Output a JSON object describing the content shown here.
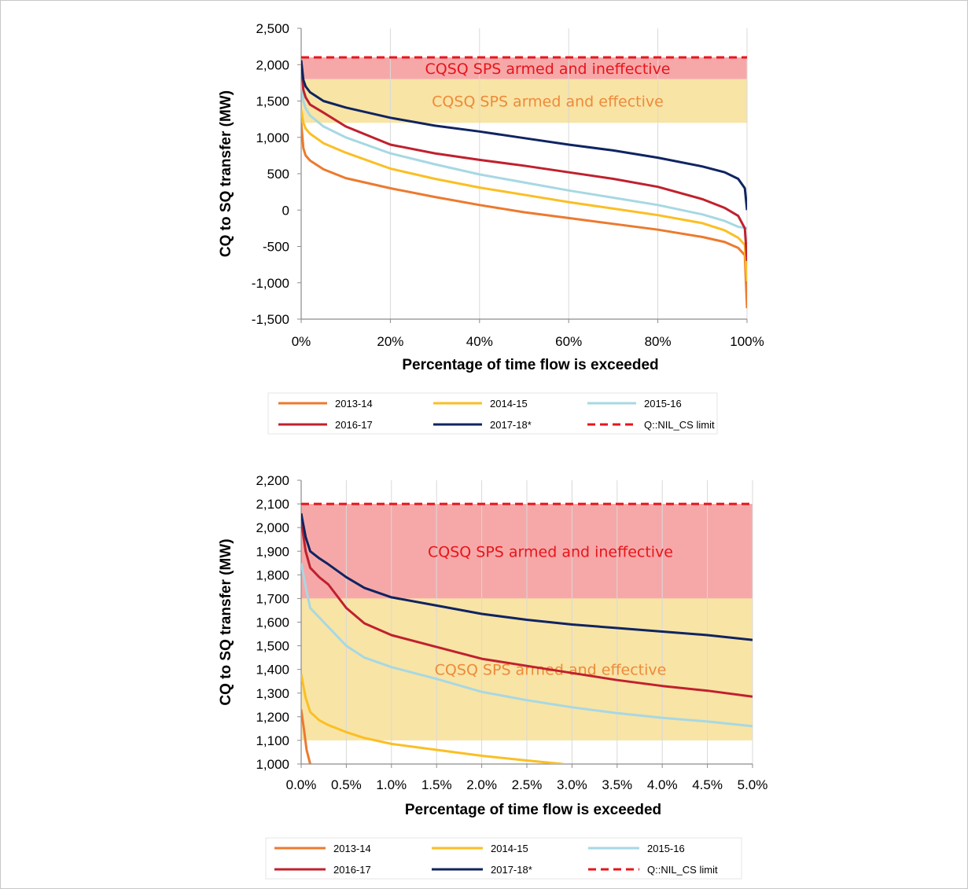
{
  "chart_data": [
    {
      "type": "line",
      "xlabel": "Percentage of time flow is exceeded",
      "ylabel": "CQ to SQ transfer (MW)",
      "xlim": [
        0,
        100
      ],
      "ylim": [
        -1500,
        2500
      ],
      "x_ticks": [
        0,
        20,
        40,
        60,
        80,
        100
      ],
      "x_tick_labels": [
        "0%",
        "20%",
        "40%",
        "60%",
        "80%",
        "100%"
      ],
      "y_ticks": [
        -1500,
        -1000,
        -500,
        0,
        500,
        1000,
        1500,
        2000,
        2500
      ],
      "y_tick_labels": [
        "-1,500",
        "-1,000",
        "-500",
        "0",
        "500",
        "1,000",
        "1,500",
        "2,000",
        "2,500"
      ],
      "grid": "vertical",
      "bands": [
        {
          "label": "CQSQ SPS armed and ineffective",
          "range": [
            1800,
            2100
          ],
          "color": "#f5a3a3",
          "label_color": "#e8141b"
        },
        {
          "label": "CQSQ SPS armed and effective",
          "range": [
            1200,
            1800
          ],
          "color": "#f8e3a0",
          "label_color": "#ee8a3a"
        }
      ],
      "limit": {
        "name": "Q::NIL_CS limit",
        "value": 2100,
        "color": "#e8141b"
      },
      "series": [
        {
          "name": "2013-14",
          "color": "#ec7a2e",
          "x": [
            0,
            0.5,
            1,
            2,
            5,
            10,
            20,
            30,
            40,
            50,
            60,
            70,
            80,
            90,
            95,
            98,
            99.5,
            100
          ],
          "values": [
            1200,
            850,
            750,
            680,
            560,
            440,
            300,
            180,
            70,
            -30,
            -110,
            -190,
            -270,
            -370,
            -440,
            -520,
            -620,
            -1350
          ]
        },
        {
          "name": "2014-15",
          "color": "#fbbf24",
          "x": [
            0,
            0.5,
            1,
            2,
            5,
            10,
            20,
            30,
            40,
            50,
            60,
            70,
            80,
            90,
            95,
            98,
            99.5,
            100
          ],
          "values": [
            1380,
            1200,
            1120,
            1050,
            920,
            790,
            570,
            430,
            310,
            210,
            110,
            20,
            -70,
            -180,
            -280,
            -380,
            -480,
            -980
          ]
        },
        {
          "name": "2015-16",
          "color": "#a7d8e3",
          "x": [
            0,
            0.5,
            1,
            2,
            5,
            10,
            20,
            30,
            40,
            50,
            60,
            70,
            80,
            90,
            95,
            98,
            100
          ],
          "values": [
            1850,
            1500,
            1400,
            1300,
            1150,
            1000,
            780,
            630,
            490,
            380,
            270,
            170,
            70,
            -60,
            -150,
            -230,
            -250
          ]
        },
        {
          "name": "2016-17",
          "color": "#c0202e",
          "x": [
            0,
            0.5,
            1,
            2,
            5,
            10,
            20,
            30,
            40,
            50,
            60,
            70,
            80,
            90,
            95,
            98,
            99.5,
            100
          ],
          "values": [
            2000,
            1650,
            1550,
            1450,
            1340,
            1150,
            900,
            780,
            690,
            610,
            520,
            430,
            320,
            150,
            30,
            -80,
            -250,
            -700
          ]
        },
        {
          "name": "2017-18*",
          "color": "#0f2461",
          "x": [
            0,
            0.5,
            1,
            2,
            5,
            10,
            20,
            30,
            40,
            50,
            60,
            70,
            80,
            90,
            95,
            98,
            99.5,
            100
          ],
          "values": [
            2060,
            1790,
            1700,
            1620,
            1500,
            1410,
            1270,
            1160,
            1080,
            990,
            900,
            820,
            720,
            600,
            520,
            430,
            300,
            0
          ]
        }
      ],
      "legend": {
        "position": "bottom",
        "entries": [
          "2013-14",
          "2014-15",
          "2015-16",
          "2016-17",
          "2017-18*",
          "Q::NIL_CS limit"
        ]
      }
    },
    {
      "type": "line",
      "xlabel": "Percentage of time flow is exceeded",
      "ylabel": "CQ to SQ transfer (MW)",
      "xlim": [
        0,
        5
      ],
      "ylim": [
        1000,
        2200
      ],
      "x_ticks": [
        0,
        0.5,
        1,
        1.5,
        2,
        2.5,
        3,
        3.5,
        4,
        4.5,
        5
      ],
      "x_tick_labels": [
        "0.0%",
        "0.5%",
        "1.0%",
        "1.5%",
        "2.0%",
        "2.5%",
        "3.0%",
        "3.5%",
        "4.0%",
        "4.5%",
        "5.0%"
      ],
      "y_ticks": [
        1000,
        1100,
        1200,
        1300,
        1400,
        1500,
        1600,
        1700,
        1800,
        1900,
        2000,
        2100,
        2200
      ],
      "y_tick_labels": [
        "1,000",
        "1,100",
        "1,200",
        "1,300",
        "1,400",
        "1,500",
        "1,600",
        "1,700",
        "1,800",
        "1,900",
        "2,000",
        "2,100",
        "2,200"
      ],
      "grid": "vertical",
      "bands": [
        {
          "label": "CQSQ SPS armed and ineffective",
          "range": [
            1700,
            2100
          ],
          "color": "#f5a3a3",
          "label_color": "#e8141b"
        },
        {
          "label": "CQSQ SPS armed and effective",
          "range": [
            1100,
            1700
          ],
          "color": "#f8e3a0",
          "label_color": "#ee8a3a"
        }
      ],
      "limit": {
        "name": "Q::NIL_CS limit",
        "value": 2100,
        "color": "#e8141b"
      },
      "series": [
        {
          "name": "2013-14",
          "color": "#ec7a2e",
          "x": [
            0,
            0.03,
            0.06,
            0.1
          ],
          "values": [
            1230,
            1150,
            1060,
            1000
          ]
        },
        {
          "name": "2014-15",
          "color": "#fbbf24",
          "x": [
            0,
            0.05,
            0.1,
            0.2,
            0.3,
            0.5,
            0.7,
            1.0,
            1.5,
            2.0,
            2.5,
            2.9
          ],
          "values": [
            1380,
            1280,
            1220,
            1185,
            1165,
            1135,
            1110,
            1085,
            1060,
            1035,
            1015,
            1000
          ]
        },
        {
          "name": "2015-16",
          "color": "#a7d8e3",
          "x": [
            0,
            0.05,
            0.1,
            0.2,
            0.3,
            0.5,
            0.7,
            1.0,
            1.5,
            2.0,
            2.5,
            3.0,
            3.5,
            4.0,
            4.5,
            5.0
          ],
          "values": [
            1850,
            1750,
            1660,
            1620,
            1580,
            1500,
            1450,
            1410,
            1360,
            1305,
            1270,
            1240,
            1215,
            1195,
            1180,
            1160
          ]
        },
        {
          "name": "2016-17",
          "color": "#c0202e",
          "x": [
            0,
            0.05,
            0.1,
            0.2,
            0.3,
            0.5,
            0.7,
            1.0,
            1.5,
            2.0,
            2.5,
            3.0,
            3.5,
            4.0,
            4.5,
            5.0
          ],
          "values": [
            2030,
            1900,
            1830,
            1790,
            1760,
            1660,
            1595,
            1545,
            1495,
            1445,
            1415,
            1385,
            1355,
            1330,
            1310,
            1285
          ]
        },
        {
          "name": "2017-18*",
          "color": "#0f2461",
          "x": [
            0,
            0.05,
            0.1,
            0.2,
            0.3,
            0.5,
            0.7,
            1.0,
            1.5,
            2.0,
            2.5,
            3.0,
            3.5,
            4.0,
            4.5,
            5.0
          ],
          "values": [
            2060,
            1960,
            1900,
            1870,
            1845,
            1790,
            1745,
            1705,
            1670,
            1635,
            1610,
            1590,
            1575,
            1560,
            1545,
            1525
          ]
        }
      ],
      "legend": {
        "position": "bottom",
        "entries": [
          "2013-14",
          "2014-15",
          "2015-16",
          "2016-17",
          "2017-18*",
          "Q::NIL_CS limit"
        ]
      }
    }
  ]
}
